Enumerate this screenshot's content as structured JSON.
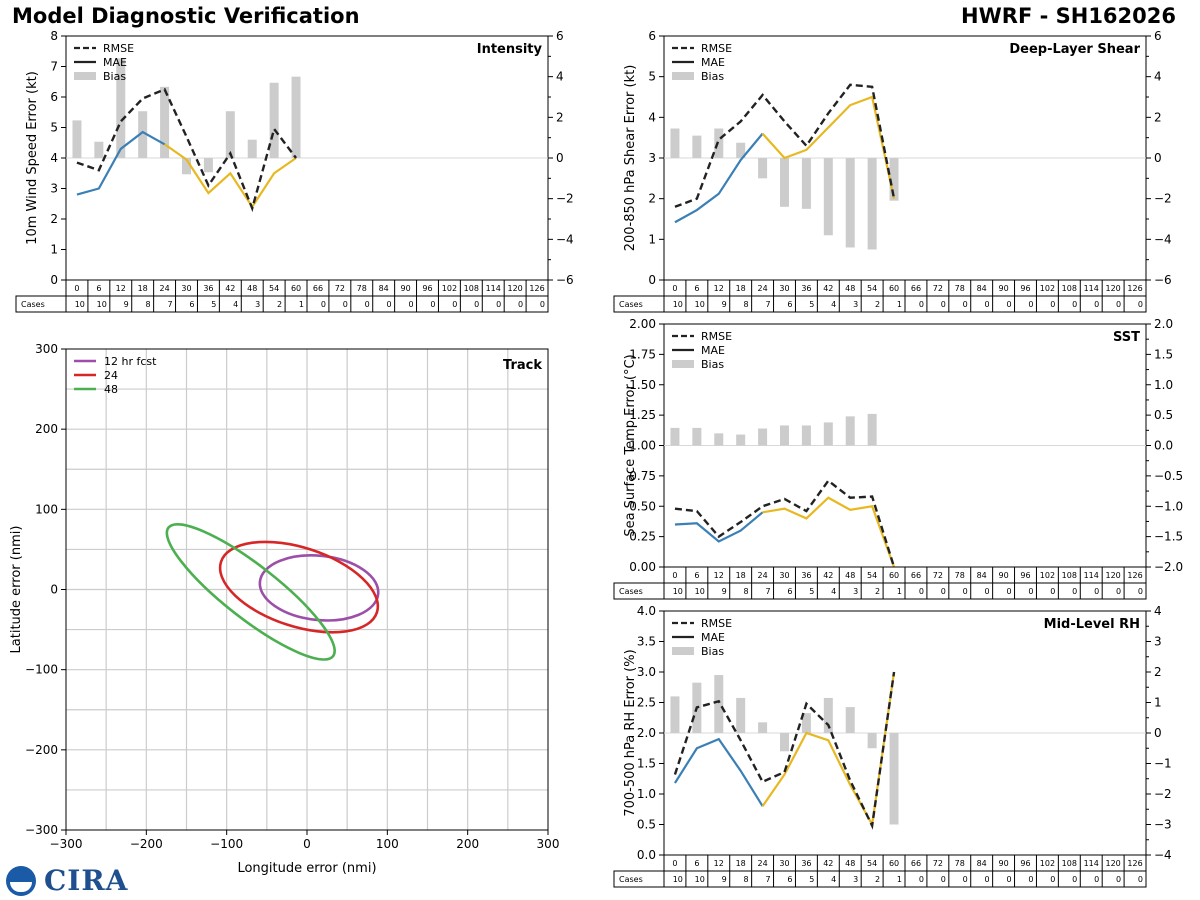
{
  "header": {
    "title_left": "Model Diagnostic Verification",
    "title_right": "HWRF - SH162026"
  },
  "logo": {
    "noaa_label": "NOAA",
    "cira_label": "CIRA"
  },
  "colors": {
    "early": "#3a7fb5",
    "late": "#e8b820",
    "rmse": "#222222",
    "bias": "#cccccc",
    "track_12": "#9b4fa8",
    "track_24": "#d62728",
    "track_48": "#4caf50",
    "grid": "#cccccc"
  },
  "legend_labels": {
    "rmse": "RMSE",
    "mae": "MAE",
    "bias": "Bias"
  },
  "cases_label": "Cases",
  "chart_data": [
    {
      "id": "intensity",
      "type": "line",
      "title": "Intensity",
      "ylabel": "10m Wind Speed Error (kt)",
      "ylim": [
        0,
        8
      ],
      "yticks": [
        "0",
        "1",
        "2",
        "3",
        "4",
        "5",
        "6",
        "7",
        "8"
      ],
      "y2lim": [
        -6,
        6
      ],
      "y2ticks": [
        "−6",
        "−4",
        "−2",
        "0",
        "2",
        "4",
        "6"
      ],
      "bias_axis": "right",
      "x": [
        0,
        6,
        12,
        18,
        24,
        30,
        36,
        42,
        48,
        54,
        60
      ],
      "rmse": [
        3.85,
        3.6,
        5.2,
        5.95,
        6.25,
        4.7,
        3.1,
        4.15,
        2.35,
        4.95,
        4.0
      ],
      "mae": [
        2.8,
        3.0,
        4.3,
        4.85,
        4.45,
        3.95,
        2.85,
        3.5,
        2.4,
        3.5,
        4.0
      ],
      "bias": [
        1.85,
        0.8,
        4.9,
        2.3,
        3.5,
        -0.8,
        -0.7,
        2.3,
        0.9,
        3.7,
        4.0
      ],
      "cases": [
        10,
        10,
        9,
        8,
        7,
        6,
        5,
        4,
        3,
        2,
        1,
        0,
        0,
        0,
        0,
        0,
        0,
        0,
        0,
        0,
        0,
        0
      ]
    },
    {
      "id": "shear",
      "type": "line",
      "title": "Deep-Layer Shear",
      "ylabel": "200-850 hPa Shear Error (kt)",
      "ylim": [
        0,
        6
      ],
      "yticks": [
        "0",
        "1",
        "2",
        "3",
        "4",
        "5",
        "6"
      ],
      "y2lim": [
        -6,
        6
      ],
      "y2ticks": [
        "−6",
        "−4",
        "−2",
        "0",
        "2",
        "4",
        "6"
      ],
      "bias_axis": "right",
      "x": [
        0,
        6,
        12,
        18,
        24,
        30,
        36,
        42,
        48,
        54,
        60
      ],
      "rmse": [
        1.8,
        2.0,
        3.45,
        3.9,
        4.55,
        3.9,
        3.3,
        4.1,
        4.8,
        4.75,
        2.0
      ],
      "mae": [
        1.42,
        1.72,
        2.12,
        2.95,
        3.6,
        3.0,
        3.2,
        3.75,
        4.3,
        4.5,
        2.0
      ],
      "bias": [
        1.45,
        1.1,
        1.45,
        0.75,
        -1.0,
        -2.4,
        -2.5,
        -3.8,
        -4.4,
        -4.5,
        -2.1
      ],
      "cases": [
        10,
        10,
        9,
        8,
        7,
        6,
        5,
        4,
        3,
        2,
        1,
        0,
        0,
        0,
        0,
        0,
        0,
        0,
        0,
        0,
        0,
        0
      ]
    },
    {
      "id": "sst",
      "type": "line",
      "title": "SST",
      "ylabel": "Sea Surface Temp Error (°C)",
      "ylim": [
        0,
        2
      ],
      "yticks": [
        "0.00",
        "0.25",
        "0.50",
        "0.75",
        "1.00",
        "1.25",
        "1.50",
        "1.75",
        "2.00"
      ],
      "y2lim": [
        -2,
        2
      ],
      "y2ticks": [
        "−2.0",
        "−1.5",
        "−1.0",
        "−0.5",
        "0.0",
        "0.5",
        "1.0",
        "1.5",
        "2.0"
      ],
      "bias_axis": "right",
      "x": [
        0,
        6,
        12,
        18,
        24,
        30,
        36,
        42,
        48,
        54,
        60
      ],
      "rmse": [
        0.48,
        0.46,
        0.25,
        0.37,
        0.5,
        0.56,
        0.46,
        0.71,
        0.57,
        0.58,
        0.0
      ],
      "mae": [
        0.35,
        0.36,
        0.21,
        0.3,
        0.45,
        0.48,
        0.4,
        0.57,
        0.47,
        0.5,
        0.0
      ],
      "bias": [
        0.29,
        0.29,
        0.2,
        0.18,
        0.28,
        0.33,
        0.33,
        0.38,
        0.48,
        0.52,
        0.0
      ],
      "cases": [
        10,
        10,
        9,
        8,
        7,
        6,
        5,
        4,
        3,
        2,
        1,
        0,
        0,
        0,
        0,
        0,
        0,
        0,
        0,
        0,
        0,
        0
      ]
    },
    {
      "id": "rh",
      "type": "line",
      "title": "Mid-Level RH",
      "ylabel": "700-500 hPa RH Error (%)",
      "ylim": [
        0,
        4
      ],
      "yticks": [
        "0.0",
        "0.5",
        "1.0",
        "1.5",
        "2.0",
        "2.5",
        "3.0",
        "3.5",
        "4.0"
      ],
      "y2lim": [
        -4,
        4
      ],
      "y2ticks": [
        "−4",
        "−3",
        "−2",
        "−1",
        "0",
        "1",
        "2",
        "3",
        "4"
      ],
      "bias_axis": "right",
      "x": [
        0,
        6,
        12,
        18,
        24,
        30,
        36,
        42,
        48,
        54,
        60
      ],
      "rmse": [
        1.32,
        2.42,
        2.52,
        1.88,
        1.2,
        1.36,
        2.48,
        2.13,
        1.22,
        0.48,
        3.0
      ],
      "mae": [
        1.18,
        1.75,
        1.9,
        1.38,
        0.8,
        1.32,
        2.0,
        1.88,
        1.15,
        0.5,
        3.0
      ],
      "bias": [
        1.2,
        1.65,
        1.9,
        1.15,
        0.35,
        -0.6,
        0.65,
        1.15,
        0.85,
        -0.5,
        -3.0
      ],
      "cases": [
        10,
        10,
        9,
        8,
        7,
        6,
        5,
        4,
        3,
        2,
        1,
        0,
        0,
        0,
        0,
        0,
        0,
        0,
        0,
        0,
        0,
        0
      ]
    },
    {
      "id": "track",
      "type": "scatter",
      "title": "Track",
      "xlabel": "Longitude error (nmi)",
      "ylabel": "Latitude error (nmi)",
      "xlim": [
        -300,
        300
      ],
      "ylim": [
        -300,
        300
      ],
      "ticks": [
        -300,
        -200,
        -100,
        0,
        100,
        200,
        300
      ],
      "tick_labels": [
        "−300",
        "−200",
        "−100",
        "0",
        "100",
        "200",
        "300"
      ],
      "ellipses": [
        {
          "label": "12 hr fcst",
          "color": "#9b4fa8",
          "cx": 15,
          "cy": 2,
          "rx": 74,
          "ry": 40,
          "angle": -6
        },
        {
          "label": "24",
          "color": "#d62728",
          "cx": -10,
          "cy": 3,
          "rx": 102,
          "ry": 49,
          "angle": -18
        },
        {
          "label": "48",
          "color": "#4caf50",
          "cx": -70,
          "cy": -3,
          "rx": 130,
          "ry": 33,
          "angle": -38
        }
      ]
    }
  ],
  "forecast_hours": [
    "0",
    "6",
    "12",
    "18",
    "24",
    "30",
    "36",
    "42",
    "48",
    "54",
    "60",
    "66",
    "72",
    "78",
    "84",
    "90",
    "96",
    "102",
    "108",
    "114",
    "120",
    "126"
  ]
}
